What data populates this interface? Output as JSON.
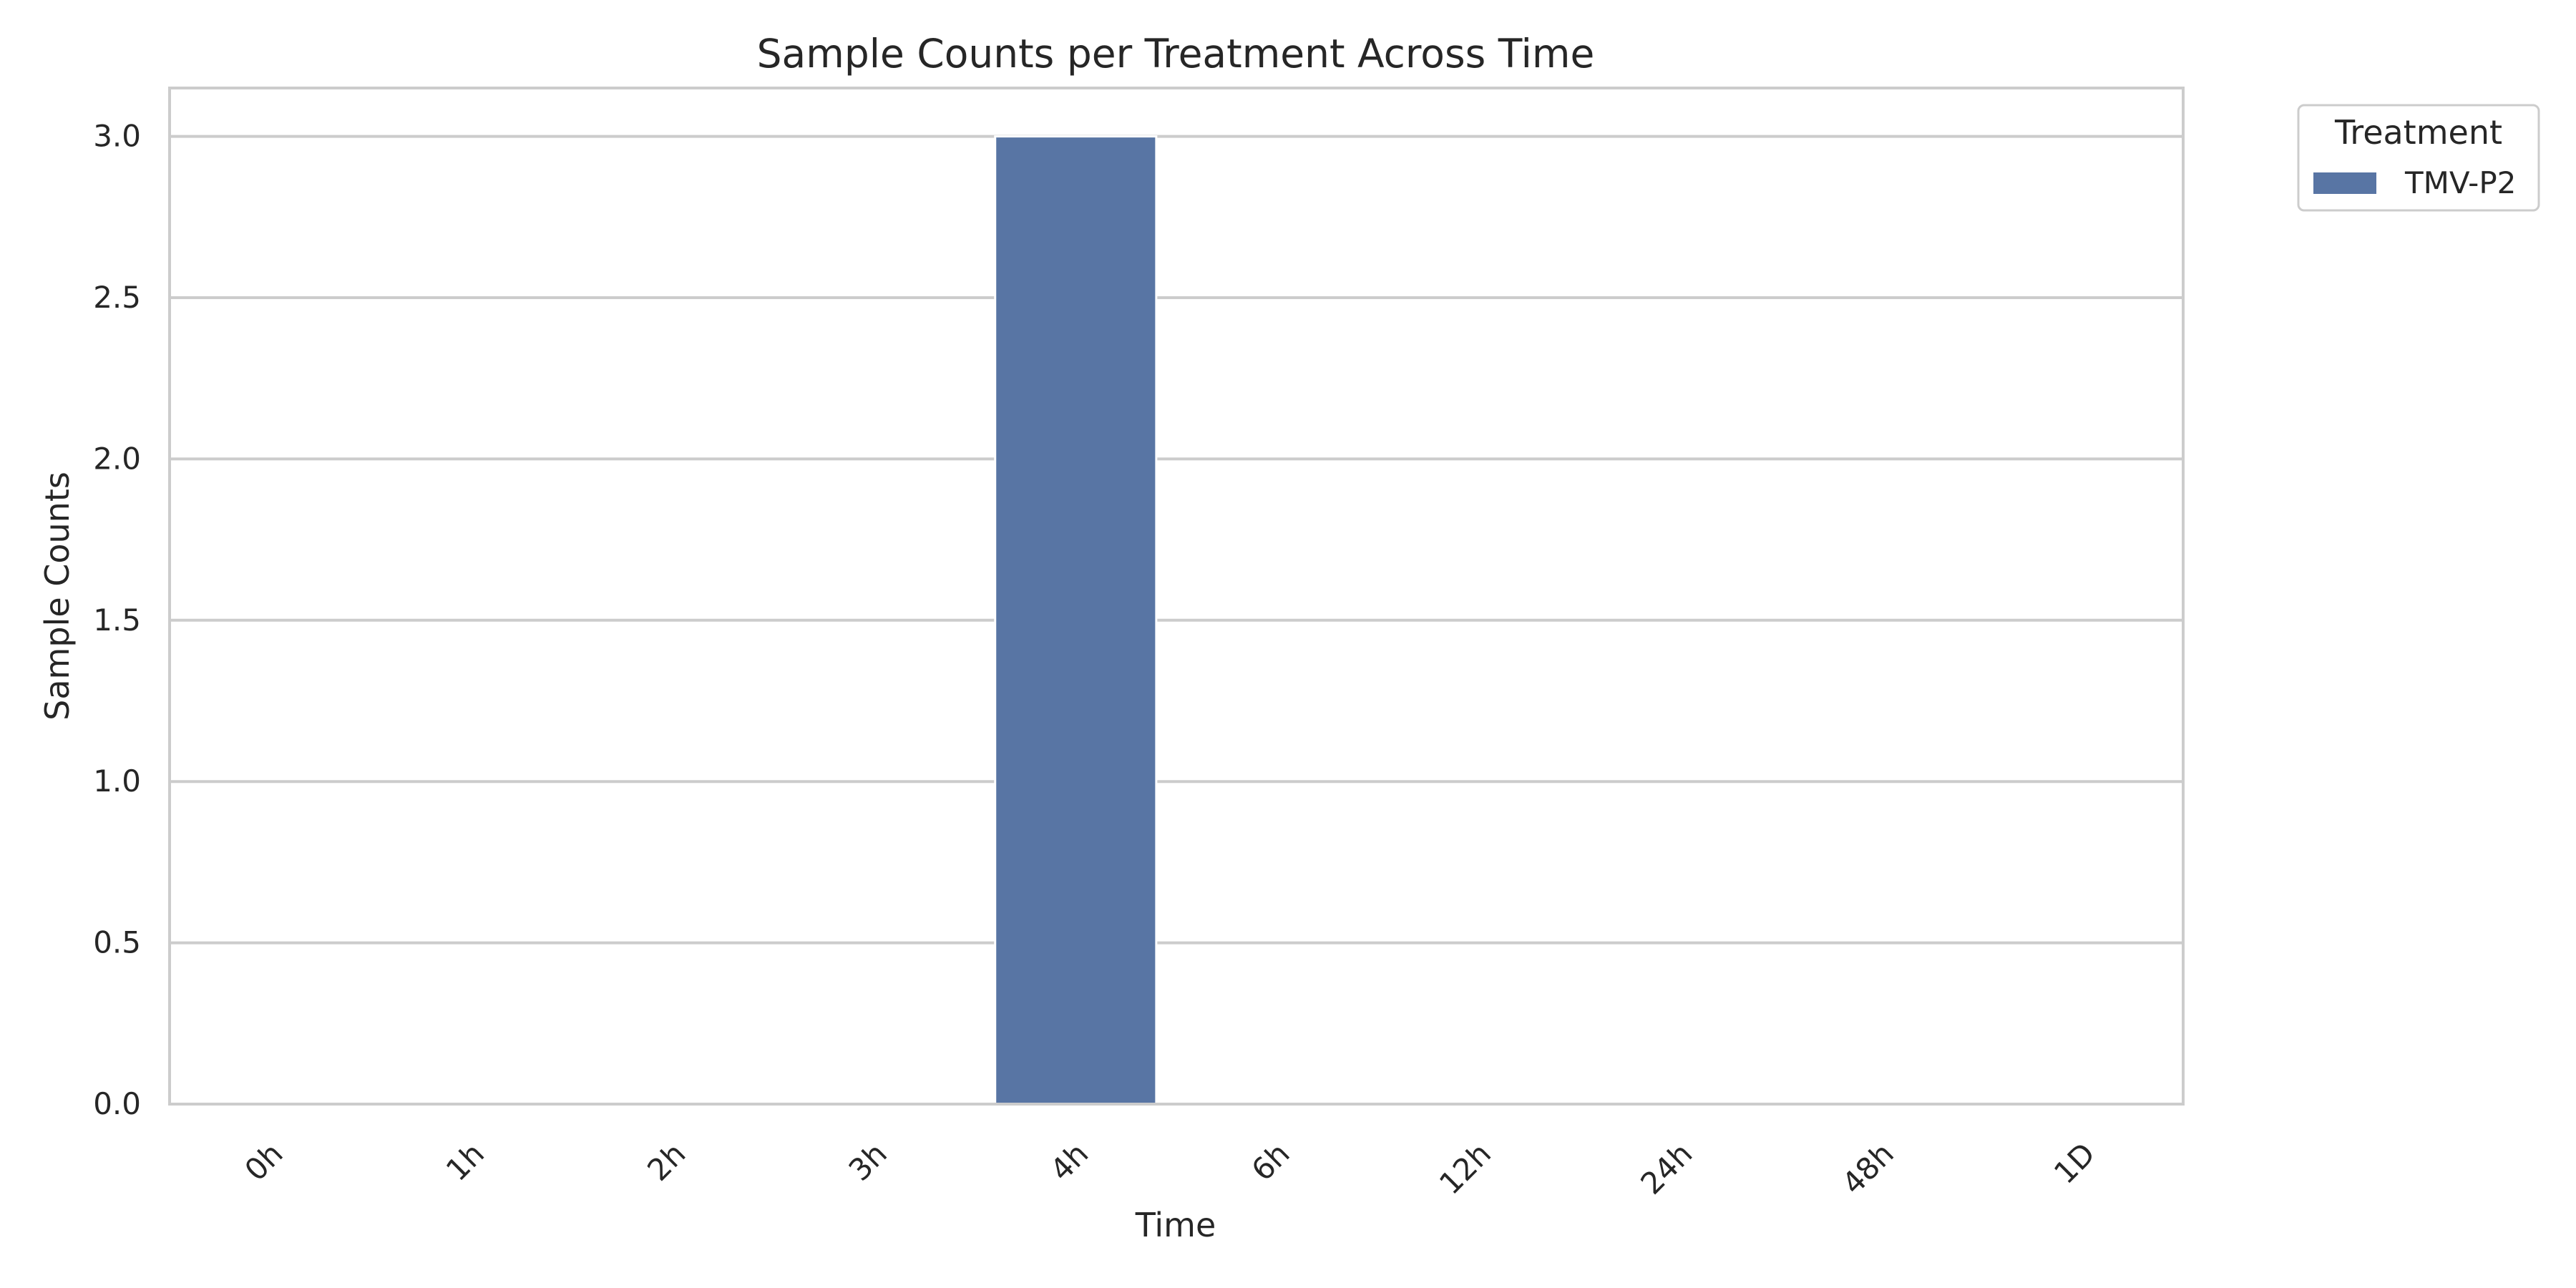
{
  "chart_data": {
    "type": "bar",
    "title": "Sample Counts per Treatment Across Time",
    "xlabel": "Time",
    "ylabel": "Sample Counts",
    "categories": [
      "0h",
      "1h",
      "2h",
      "3h",
      "4h",
      "6h",
      "12h",
      "24h",
      "48h",
      "1D"
    ],
    "series": [
      {
        "name": "TMV-P2",
        "color": "#5875a4",
        "values": [
          0,
          0,
          0,
          0,
          3,
          0,
          0,
          0,
          0,
          0
        ]
      }
    ],
    "ylim": [
      0,
      3.15
    ],
    "yticks": [
      0.0,
      0.5,
      1.0,
      1.5,
      2.0,
      2.5,
      3.0
    ],
    "ytick_labels": [
      "0.0",
      "0.5",
      "1.0",
      "1.5",
      "2.0",
      "2.5",
      "3.0"
    ],
    "grid": "horizontal",
    "legend": {
      "title": "Treatment",
      "placement": "outside-top-right"
    }
  }
}
